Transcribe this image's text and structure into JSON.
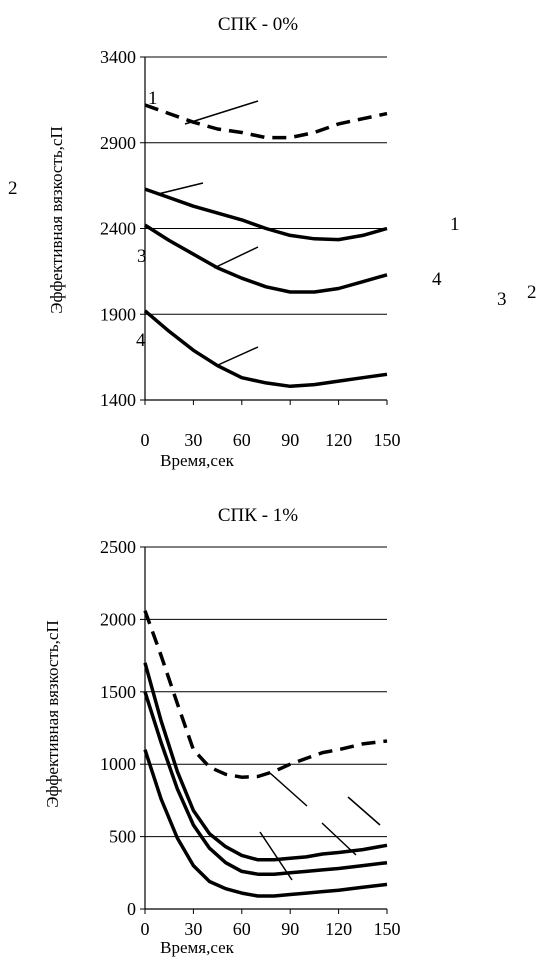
{
  "chart_data": [
    {
      "type": "line",
      "title": "СПК - 0%",
      "xlabel": "Время,сек",
      "ylabel": "Эффективная вязкость,сП",
      "xlim": [
        0,
        150
      ],
      "ylim": [
        1400,
        3400
      ],
      "x_ticks": [
        "0",
        "30",
        "60",
        "90",
        "120",
        "150"
      ],
      "y_ticks": [
        "1400",
        "1900",
        "2400",
        "2900",
        "3400"
      ],
      "grid": "horizontal",
      "series": [
        {
          "label": "1",
          "style": "dashed",
          "x": [
            0,
            15,
            30,
            45,
            60,
            75,
            90,
            105,
            120,
            135,
            150
          ],
          "y": [
            3120,
            3070,
            3020,
            2980,
            2960,
            2930,
            2930,
            2960,
            3010,
            3040,
            3070
          ]
        },
        {
          "label": "2",
          "style": "solid",
          "x": [
            0,
            15,
            30,
            45,
            60,
            75,
            90,
            105,
            120,
            135,
            150
          ],
          "y": [
            2630,
            2580,
            2530,
            2490,
            2450,
            2400,
            2360,
            2340,
            2335,
            2360,
            2400
          ]
        },
        {
          "label": "3",
          "style": "solid",
          "x": [
            0,
            15,
            30,
            45,
            60,
            75,
            90,
            105,
            120,
            135,
            150
          ],
          "y": [
            2420,
            2330,
            2250,
            2170,
            2110,
            2060,
            2030,
            2030,
            2050,
            2090,
            2130
          ]
        },
        {
          "label": "4",
          "style": "solid",
          "x": [
            0,
            15,
            30,
            45,
            60,
            75,
            90,
            105,
            120,
            135,
            150
          ],
          "y": [
            1920,
            1800,
            1690,
            1600,
            1530,
            1500,
            1480,
            1490,
            1510,
            1530,
            1550
          ]
        }
      ],
      "annotations": [
        "1",
        "2",
        "3",
        "4"
      ]
    },
    {
      "type": "line",
      "title": "СПК - 1%",
      "xlabel": "Время,сек",
      "ylabel": "Эффективная вязкость,сП",
      "xlim": [
        0,
        150
      ],
      "ylim": [
        0,
        2500
      ],
      "x_ticks": [
        "0",
        "30",
        "60",
        "90",
        "120",
        "150"
      ],
      "y_ticks": [
        "0",
        "500",
        "1000",
        "1500",
        "2000",
        "2500"
      ],
      "grid": "horizontal",
      "series": [
        {
          "label": "1",
          "style": "dashed",
          "x": [
            0,
            10,
            20,
            30,
            40,
            50,
            60,
            70,
            80,
            90,
            100,
            110,
            120,
            135,
            150
          ],
          "y": [
            2060,
            1750,
            1420,
            1100,
            980,
            930,
            910,
            915,
            950,
            1000,
            1040,
            1080,
            1100,
            1140,
            1160
          ]
        },
        {
          "label": "2",
          "style": "solid",
          "x": [
            0,
            10,
            20,
            30,
            40,
            50,
            60,
            70,
            80,
            90,
            100,
            110,
            120,
            135,
            150
          ],
          "y": [
            1700,
            1300,
            950,
            680,
            520,
            430,
            370,
            340,
            340,
            350,
            360,
            380,
            390,
            410,
            440
          ]
        },
        {
          "label": "3",
          "style": "solid",
          "x": [
            0,
            10,
            20,
            30,
            40,
            50,
            60,
            70,
            80,
            90,
            100,
            110,
            120,
            135,
            150
          ],
          "y": [
            1500,
            1150,
            830,
            580,
            420,
            320,
            260,
            240,
            240,
            250,
            260,
            270,
            280,
            300,
            320
          ]
        },
        {
          "label": "4",
          "style": "solid",
          "x": [
            0,
            10,
            20,
            30,
            40,
            50,
            60,
            70,
            80,
            90,
            100,
            110,
            120,
            135,
            150
          ],
          "y": [
            1100,
            760,
            490,
            300,
            190,
            140,
            110,
            90,
            90,
            100,
            110,
            120,
            130,
            150,
            170
          ]
        }
      ]
    }
  ],
  "floating_labels": {
    "top_left_2": "2",
    "top_left_3": "3",
    "top_left_4": "4",
    "top_left_1": "1",
    "right_1": "1",
    "right_2": "2",
    "right_3": "3",
    "right_4": "4"
  }
}
